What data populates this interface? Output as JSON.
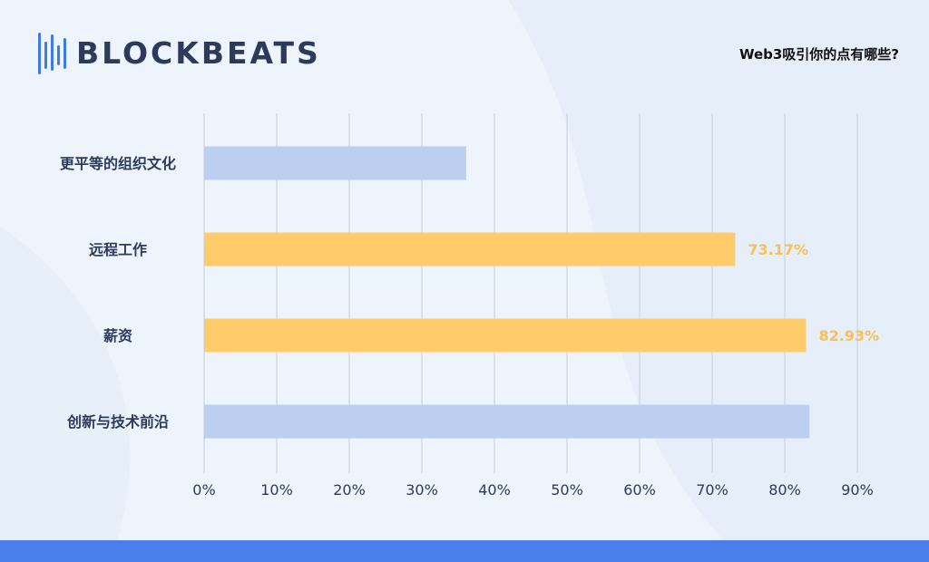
{
  "brand": {
    "logo_text": "BLOCKBEATS"
  },
  "chart_data": {
    "type": "bar",
    "orientation": "horizontal",
    "title": "Web3吸引你的点有哪些?",
    "categories": [
      "更平等的组织文化",
      "远程工作",
      "薪资",
      "创新与技术前沿"
    ],
    "values": [
      36.1,
      73.17,
      82.93,
      83.4
    ],
    "data_labels": [
      "",
      "73.17%",
      "82.93%",
      ""
    ],
    "highlighted": [
      false,
      true,
      true,
      false
    ],
    "xlim": [
      0,
      90
    ],
    "xticks": [
      0,
      10,
      20,
      30,
      40,
      50,
      60,
      70,
      80,
      90
    ],
    "tick_labels": [
      "0%",
      "10%",
      "20%",
      "30%",
      "40%",
      "50%",
      "60%",
      "70%",
      "80%",
      "90%"
    ],
    "xlabel": "",
    "ylabel": "",
    "grid": true,
    "legend": "none",
    "colors": {
      "default_bar": "#bccff0",
      "highlight_bar": "#ffcb6b",
      "highlight_label": "#f7c15a",
      "grid": "#d2dae6",
      "axis_text": "#2d3a5c",
      "category_text": "#2d3a5c",
      "background": "#eef4fc",
      "footer": "#4a7eea",
      "logo_mark": "#3f7ae8"
    }
  }
}
